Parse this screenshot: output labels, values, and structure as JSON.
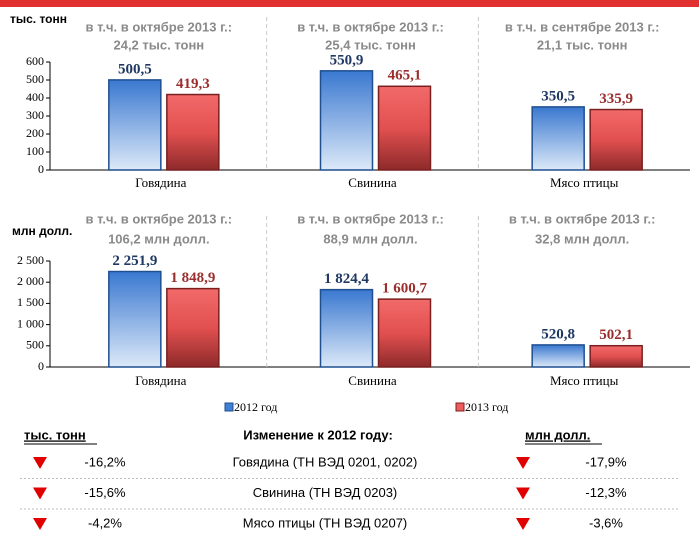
{
  "chart_data": [
    {
      "type": "bar",
      "y_label": "тыс. тонн",
      "annotations": [
        [
          "в т.ч. в октябре 2013 г.:",
          "24,2 тыс. тонн"
        ],
        [
          "в т.ч. в октябре 2013 г.:",
          "25,4 тыс. тонн"
        ],
        [
          "в т.ч. в сентябре 2013 г.:",
          "21,1 тыс. тонн"
        ]
      ],
      "categories": [
        "Говядина",
        "Свинина",
        "Мясо птицы"
      ],
      "series": [
        {
          "color": "#3f7fd4",
          "values": [
            500.5,
            550.9,
            350.5
          ],
          "value_labels": [
            "500,5",
            "550,9",
            "350,5"
          ]
        },
        {
          "color": "#ee5c5c",
          "values": [
            419.3,
            465.1,
            335.9
          ],
          "value_labels": [
            "419,3",
            "465,1",
            "335,9"
          ]
        }
      ],
      "ylim": [
        0,
        600
      ],
      "yticks": [
        0,
        100,
        200,
        300,
        400,
        500,
        600
      ]
    },
    {
      "type": "bar",
      "y_label": "млн долл.",
      "annotations": [
        [
          "в  т.ч. в октябре 2013 г.:",
          "106,2 млн долл."
        ],
        [
          "в т.ч. в октябре 2013 г.:",
          "88,9 млн долл."
        ],
        [
          "в т.ч. в октябре 2013 г.:",
          "32,8 млн долл."
        ]
      ],
      "categories": [
        "Говядина",
        "Свинина",
        "Мясо птицы"
      ],
      "series": [
        {
          "name": "2012 год",
          "color": "#3f7fd4",
          "values": [
            2251.9,
            1824.4,
            520.8
          ],
          "value_labels": [
            "2 251,9",
            "1 824,4",
            "520,8"
          ]
        },
        {
          "name": "2013 год",
          "color": "#ee5c5c",
          "values": [
            1848.9,
            1600.7,
            502.1
          ],
          "value_labels": [
            "1 848,9",
            "1 600,7",
            "502,1"
          ]
        }
      ],
      "ylim": [
        0,
        2500
      ],
      "yticks": [
        0,
        500,
        {
          "value": 1000,
          "label": "1 000"
        },
        {
          "value": 1500,
          "label": "1 500"
        },
        {
          "value": 2000,
          "label": "2 000"
        },
        {
          "value": 2500,
          "label": "2 500"
        }
      ],
      "legend": "bottom"
    }
  ],
  "table": {
    "headers": [
      "тыс. тонн",
      "Изменение к 2012 году:",
      "млн долл."
    ],
    "rows": [
      [
        "-16,2%",
        "Говядина (ТН ВЭД 0201, 0202)",
        "-17,9%"
      ],
      [
        "-15,6%",
        "Свинина (ТН ВЭД 0203)",
        "-12,3%"
      ],
      [
        "-4,2%",
        "Мясо птицы (ТН ВЭД 0207)",
        "-3,6%"
      ]
    ]
  }
}
